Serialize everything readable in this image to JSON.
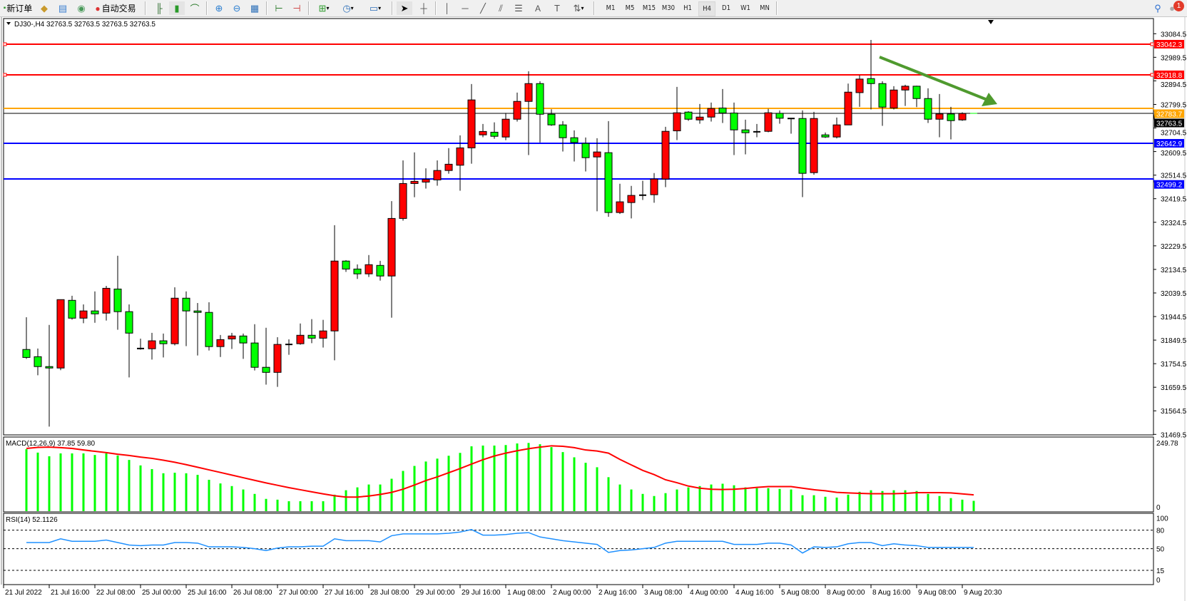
{
  "toolbar": {
    "new_order": "新订单",
    "auto_trading": "自动交易",
    "timeframes": [
      "M1",
      "M5",
      "M15",
      "M30",
      "H1",
      "H4",
      "D1",
      "W1",
      "MN"
    ],
    "active_timeframe": "H4",
    "notification_count": "1",
    "icons": [
      "market-watch-icon",
      "navigator-icon",
      "signals-icon",
      "auto-trading-icon",
      "bar-chart-icon",
      "candlestick-icon",
      "line-chart-icon",
      "zoom-in-icon",
      "zoom-out-icon",
      "tile-windows-icon",
      "auto-scroll-icon",
      "chart-shift-icon",
      "new-chart-icon",
      "periods-clock-icon",
      "templates-icon",
      "cursor-icon",
      "crosshair-icon",
      "vertical-line-icon",
      "horizontal-line-icon",
      "trendline-icon",
      "equidistant-channel-icon",
      "fibonacci-icon",
      "text-icon",
      "text-label-icon",
      "arrows-icon",
      "search-icon",
      "notification-icon"
    ]
  },
  "chart": {
    "title": "DJ30-,H4  32763.5 32763.5 32763.5 32763.5",
    "bid": 32763.5,
    "colors": {
      "up": "#ff0000",
      "down": "#00ff00",
      "doji": "#000000",
      "macd_hist": "#00ff00",
      "macd_signal": "#ff0000",
      "rsi": "#1e90ff",
      "arrow": "#4f9a2e"
    },
    "price_axis": [
      "33084.5",
      "32989.5",
      "32894.5",
      "32799.5",
      "32704.5",
      "32609.5",
      "32514.5",
      "32419.5",
      "32324.5",
      "32229.5",
      "32134.5",
      "32039.5",
      "31944.5",
      "31849.5",
      "31754.5",
      "31659.5",
      "31564.5",
      "31469.5"
    ],
    "hlines": [
      {
        "price": 33042.3,
        "label": "33042.3",
        "color": "#ff0000"
      },
      {
        "price": 32918.8,
        "label": "32918.8",
        "color": "#ff0000"
      },
      {
        "price": 32783.7,
        "label": "32783.7",
        "color": "#ffa500"
      },
      {
        "price": 32763.5,
        "label": "32763.5",
        "color": "#000000"
      },
      {
        "price": 32642.9,
        "label": "32642.9",
        "color": "#0000ff"
      },
      {
        "price": 32499.2,
        "label": "32499.2",
        "color": "#0000ff"
      }
    ],
    "time_axis": [
      "21 Jul 2022",
      "21 Jul 16:00",
      "22 Jul 08:00",
      "25 Jul 00:00",
      "25 Jul 16:00",
      "26 Jul 08:00",
      "27 Jul 00:00",
      "27 Jul 16:00",
      "28 Jul 08:00",
      "29 Jul 00:00",
      "29 Jul 16:00",
      "1 Aug 08:00",
      "2 Aug 00:00",
      "2 Aug 16:00",
      "3 Aug 08:00",
      "4 Aug 00:00",
      "4 Aug 16:00",
      "5 Aug 08:00",
      "8 Aug 00:00",
      "8 Aug 16:00",
      "9 Aug 08:00",
      "9 Aug 20:30"
    ]
  },
  "chart_data": [
    {
      "type": "candlestick",
      "symbol": "DJ30-",
      "timeframe": "H4",
      "ylim": [
        31469.5,
        33084.5
      ],
      "ohlc": [
        [
          31811.7,
          31941.8,
          31773.8,
          31779.6
        ],
        [
          31782.6,
          31815.6,
          31707.8,
          31742.8
        ],
        [
          31742.8,
          31910.8,
          31501.0,
          31737.0
        ],
        [
          31737.0,
          32012.7,
          31728.2,
          32012.7
        ],
        [
          32009.8,
          32028.2,
          31932.1,
          31938.0
        ],
        [
          31938.0,
          31993.3,
          31917.5,
          31967.1
        ],
        [
          31967.1,
          32045.7,
          31919.5,
          31955.4
        ],
        [
          31958.3,
          32068.0,
          31928.3,
          32058.3
        ],
        [
          32055.4,
          32189.4,
          31891.3,
          31964.2
        ],
        [
          31964.2,
          31993.3,
          31699.1,
          31877.7
        ],
        [
          31815.6,
          31855.4,
          31810.8,
          31815.6
        ],
        [
          31814.7,
          31878.7,
          31770.9,
          31846.7
        ],
        [
          31846.7,
          31875.8,
          31779.6,
          31835.0
        ],
        [
          31835.0,
          32062.2,
          31828.2,
          32018.5
        ],
        [
          32018.5,
          32045.7,
          31825.3,
          31967.1
        ],
        [
          31967.1,
          31999.1,
          31787.4,
          31961.2
        ],
        [
          31961.2,
          32002.0,
          31807.8,
          31823.4
        ],
        [
          31823.4,
          31870.0,
          31781.6,
          31851.5
        ],
        [
          31854.4,
          31878.7,
          31813.7,
          31866.1
        ],
        [
          31866.1,
          31875.8,
          31773.8,
          31837.9
        ],
        [
          31837.9,
          31913.7,
          31727.2,
          31739.9
        ],
        [
          31739.9,
          31899.1,
          31670.0,
          31719.5
        ],
        [
          31719.5,
          31861.3,
          31661.2,
          31832.1
        ],
        [
          31832.1,
          31852.5,
          31790.4,
          31832.1
        ],
        [
          31835.0,
          31916.6,
          31831.1,
          31869.0
        ],
        [
          31869.0,
          31934.1,
          31837.0,
          31857.3
        ],
        [
          31857.3,
          31931.2,
          31819.5,
          31886.5
        ],
        [
          31886.5,
          32312.7,
          31768.0,
          32168.1
        ],
        [
          32168.1,
          32172.0,
          32124.4,
          32136.0
        ],
        [
          32136.0,
          32154.5,
          32096.2,
          32116.6
        ],
        [
          32116.6,
          32192.3,
          32104.0,
          32153.5
        ],
        [
          32150.6,
          32169.0,
          32089.4,
          32107.9
        ],
        [
          32107.9,
          32409.8,
          31939.9,
          32339.9
        ],
        [
          32339.9,
          32574.0,
          32331.2,
          32480.7
        ],
        [
          32480.7,
          32606.0,
          32425.4,
          32489.5
        ],
        [
          32486.5,
          32541.9,
          32460.3,
          32497.2
        ],
        [
          32495.3,
          32574.0,
          32472.0,
          32533.2
        ],
        [
          32533.2,
          32623.5,
          32520.5,
          32558.4
        ],
        [
          32554.5,
          32674.9,
          32451.6,
          32624.4
        ],
        [
          32624.4,
          32881.7,
          32560.4,
          32817.7
        ],
        [
          32676.9,
          32720.6,
          32667.2,
          32690.5
        ],
        [
          32687.5,
          32727.4,
          32661.3,
          32671.0
        ],
        [
          32668.1,
          32765.2,
          32655.5,
          32740.0
        ],
        [
          32739.9,
          32847.1,
          32730.4,
          32811.7
        ],
        [
          32811.7,
          32933.2,
          32595.4,
          32883.5
        ],
        [
          32883.5,
          32893.0,
          32646.1,
          32760.0
        ],
        [
          32760.0,
          32780.1,
          32713.1,
          32717.0
        ],
        [
          32717.0,
          32732.3,
          32609.8,
          32665.3
        ],
        [
          32665.3,
          32694.9,
          32569.6,
          32646.1
        ],
        [
          32642.3,
          32666.2,
          32529.4,
          32584.9
        ],
        [
          32587.8,
          32663.4,
          32368.6,
          32607.9
        ],
        [
          32605.0,
          32732.3,
          32346.6,
          32363.8
        ],
        [
          32363.8,
          32479.6,
          32358.1,
          32406.9
        ],
        [
          32404.0,
          32471.0,
          32339.9,
          32432.7
        ],
        [
          32433.7,
          32492.1,
          32414.5,
          32433.7
        ],
        [
          32435.6,
          32522.7,
          32403.1,
          32498.8
        ],
        [
          32498.8,
          32709.3,
          32466.2,
          32691.1
        ],
        [
          32693.0,
          32870.1,
          32655.7,
          32765.8
        ],
        [
          32768.6,
          32772.5,
          32733.2,
          32739.9
        ],
        [
          32737.1,
          32801.2,
          32721.7,
          32748.5
        ],
        [
          32748.5,
          32806.9,
          32730.4,
          32783.0
        ],
        [
          32784.9,
          32861.5,
          32724.6,
          32764.8
        ],
        [
          32764.8,
          32806.9,
          32595.4,
          32696.9
        ],
        [
          32696.9,
          32738.0,
          32598.3,
          32685.4
        ],
        [
          32689.2,
          32720.8,
          32667.2,
          32689.2
        ],
        [
          32691.1,
          32782.0,
          32687.3,
          32765.8
        ],
        [
          32763.8,
          32775.4,
          32721.7,
          32743.8
        ],
        [
          32742.8,
          32742.8,
          32681.5,
          32742.8
        ],
        [
          32742.8,
          32775.4,
          32426.0,
          32521.7
        ],
        [
          32524.6,
          32769.6,
          32516.0,
          32742.8
        ],
        [
          32676.8,
          32686.3,
          32664.3,
          32668.2
        ],
        [
          32668.2,
          32746.6,
          32662.4,
          32717.0
        ],
        [
          32717.0,
          32883.5,
          32717.0,
          32849.0
        ],
        [
          32847.1,
          32917.0,
          32789.7,
          32901.7
        ],
        [
          32903.6,
          33059.6,
          32779.2,
          32883.5
        ],
        [
          32883.5,
          32893.0,
          32713.1,
          32788.7
        ],
        [
          32784.9,
          32873.0,
          32779.2,
          32857.6
        ],
        [
          32857.6,
          32878.7,
          32793.5,
          32873.0
        ],
        [
          32873.0,
          32874.9,
          32788.7,
          32823.2
        ],
        [
          32823.2,
          32864.3,
          32724.6,
          32739.9
        ],
        [
          32739.9,
          32841.4,
          32667.2,
          32761.0
        ],
        [
          32761.0,
          32789.7,
          32658.6,
          32734.2
        ],
        [
          32737.1,
          32767.7,
          32733.2,
          32762.9
        ],
        [
          32763.5,
          32763.5,
          32763.5,
          32763.5
        ]
      ]
    },
    {
      "type": "bar",
      "title": "MACD(12,26,9) 37.85 59.80",
      "ylim": [
        0,
        249.78
      ],
      "axis_labels": [
        "249.78",
        "0"
      ],
      "histogram": [
        226.8,
        214.4,
        201.0,
        211.5,
        211.5,
        211.5,
        205.8,
        211.5,
        203.9,
        187.6,
        167.5,
        154.1,
        138.8,
        140.7,
        138.8,
        133.0,
        114.9,
        101.5,
        91.9,
        79.4,
        63.2,
        45.0,
        42.1,
        36.4,
        36.4,
        36.4,
        36.4,
        60.3,
        76.6,
        87.1,
        97.6,
        97.6,
        118.7,
        147.4,
        165.6,
        181.8,
        192.4,
        202.9,
        213.4,
        237.4,
        240.2,
        240.2,
        242.1,
        247.9,
        249.8,
        245.0,
        234.5,
        216.3,
        197.2,
        177.1,
        160.8,
        124.4,
        97.6,
        79.4,
        63.2,
        55.5,
        66.0,
        79.4,
        87.1,
        91.9,
        97.6,
        100.5,
        94.8,
        87.1,
        84.2,
        84.2,
        81.4,
        79.4,
        58.4,
        58.4,
        52.7,
        49.8,
        60.3,
        70.8,
        76.6,
        73.7,
        76.6,
        76.6,
        73.7,
        63.2,
        55.5,
        47.9,
        42.1,
        37.85
      ],
      "signal": [
        229.7,
        233.5,
        234.5,
        232.6,
        229.7,
        224.0,
        219.2,
        214.4,
        208.6,
        203.9,
        198.1,
        193.3,
        186.6,
        179.0,
        170.4,
        160.8,
        151.2,
        141.7,
        132.1,
        122.5,
        112.9,
        103.4,
        94.8,
        86.1,
        78.5,
        70.8,
        63.2,
        56.5,
        51.7,
        51.7,
        55.5,
        61.3,
        68.9,
        80.4,
        95.7,
        112.0,
        125.4,
        140.7,
        156.0,
        172.3,
        188.5,
        201.9,
        212.5,
        221.1,
        228.7,
        234.5,
        239.3,
        237.4,
        232.6,
        224.0,
        220.1,
        212.5,
        189.5,
        169.4,
        149.3,
        134.0,
        114.9,
        104.3,
        91.9,
        84.2,
        80.4,
        79.4,
        80.4,
        83.3,
        87.1,
        90.0,
        90.0,
        90.0,
        84.2,
        78.5,
        74.7,
        68.9,
        67.0,
        65.1,
        64.1,
        64.1,
        64.1,
        65.1,
        68.0,
        68.0,
        68.0,
        67.0,
        63.2,
        59.8
      ]
    },
    {
      "type": "line",
      "title": "RSI(14) 52.1126",
      "ylim": [
        0,
        100
      ],
      "levels": [
        80,
        50,
        15
      ],
      "axis_labels": [
        "100",
        "80",
        "50",
        "15",
        "0"
      ],
      "values": [
        60,
        60,
        60,
        66,
        62,
        62,
        62,
        64,
        60,
        56,
        55,
        56,
        56,
        60,
        60,
        59,
        53,
        53,
        53,
        52,
        50,
        47,
        51,
        53,
        53,
        54,
        54,
        66,
        63,
        63,
        63,
        61,
        71,
        74,
        74,
        74,
        74,
        75,
        77,
        81,
        72,
        72,
        73,
        75,
        76,
        69,
        66,
        63,
        61,
        59,
        57,
        44,
        47,
        48,
        50,
        52,
        59,
        62,
        62,
        62,
        62,
        62,
        57,
        57,
        57,
        59,
        59,
        56,
        43,
        53,
        52,
        53,
        58,
        60,
        60,
        55,
        58,
        56,
        55,
        52,
        52,
        52,
        52,
        52.1
      ]
    }
  ]
}
